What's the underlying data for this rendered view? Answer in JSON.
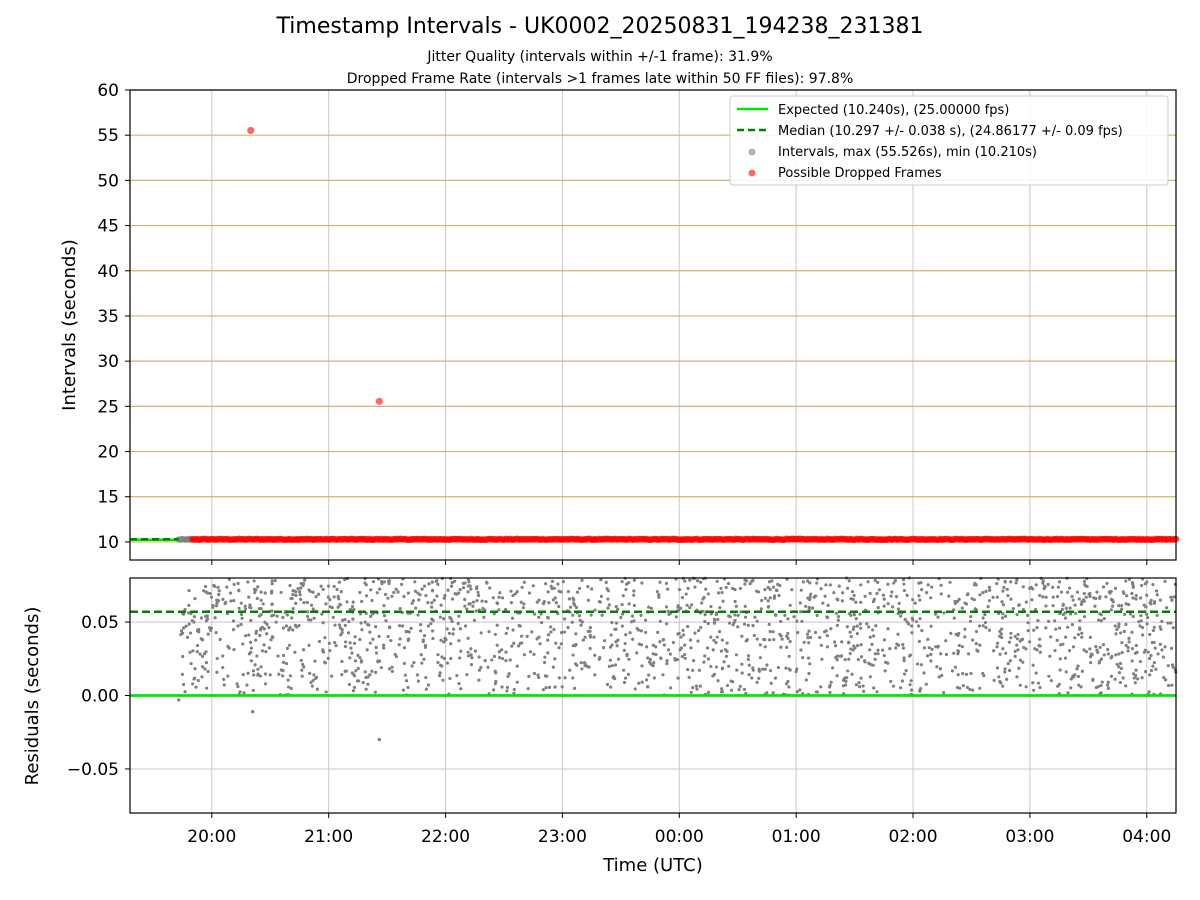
{
  "header": {
    "title": "Timestamp Intervals - UK0002_20250831_194238_231381",
    "subtitle_jitter": "Jitter Quality (intervals within +/-1 frame): 31.9%",
    "subtitle_dropped": "Dropped Frame Rate (intervals >1 frames late within 50 FF files): 97.8%"
  },
  "colors": {
    "expected": "#00e600",
    "median": "#008000",
    "intervals": "#808080",
    "dropped": "#ff0000",
    "hgrid_top": "#d2b46a",
    "grid": "#c8c8c8"
  },
  "chart_data": [
    {
      "type": "scatter",
      "title": "Timestamp Intervals - UK0002_20250831_194238_231381",
      "xlabel": "",
      "ylabel": "Intervals (seconds)",
      "ylim": [
        8,
        60
      ],
      "yticks": [
        10,
        15,
        20,
        25,
        30,
        35,
        40,
        45,
        50,
        55,
        60
      ],
      "xlim": [
        "19:18",
        "04:15"
      ],
      "x_tick_labels": [
        "20:00",
        "21:00",
        "22:00",
        "23:00",
        "00:00",
        "01:00",
        "02:00",
        "03:00",
        "04:00"
      ],
      "grid": "horizontal gridlines at every y tick; vertical gridlines at every hour",
      "legend_position": "top-right",
      "legend": [
        "Expected (10.240s), (25.00000 fps)",
        "Median (10.297 +/- 0.038 s), (24.86177 +/- 0.09 fps)",
        "Intervals, max (55.526s), min (10.210s)",
        "Possible Dropped Frames"
      ],
      "expected_line": {
        "y": 10.24,
        "style": "solid"
      },
      "median_line": {
        "y": 10.297,
        "style": "dashed"
      },
      "series": [
        {
          "name": "Intervals, max (55.526s), min (10.210s)",
          "description": "dense band between 10.21 and 10.32 s across the full night",
          "x_range": [
            "19:43",
            "04:15"
          ],
          "y_range": [
            10.21,
            10.32
          ]
        },
        {
          "name": "Possible Dropped Frames",
          "description": "continuous red band from about 19:50 to 04:15 plus two outliers",
          "band": {
            "x_range": [
              "19:50",
              "04:15"
            ],
            "y_range": [
              10.24,
              10.33
            ]
          },
          "outliers": [
            {
              "x": "20:20",
              "y": 55.526
            },
            {
              "x": "21:26",
              "y": 25.55
            }
          ]
        }
      ]
    },
    {
      "type": "scatter",
      "xlabel": "Time (UTC)",
      "ylabel": "Residuals (seconds)",
      "ylim": [
        -0.08,
        0.08
      ],
      "yticks": [
        -0.05,
        0.0,
        0.05
      ],
      "y_tick_labels": [
        "−0.05",
        "0.00",
        "0.05"
      ],
      "xlim": [
        "19:18",
        "04:15"
      ],
      "x_tick_labels": [
        "20:00",
        "21:00",
        "22:00",
        "23:00",
        "00:00",
        "01:00",
        "02:00",
        "03:00",
        "04:00"
      ],
      "grid": "on",
      "expected_line": {
        "y": 0.0,
        "style": "solid"
      },
      "median_line": {
        "y": 0.057,
        "style": "dashed"
      },
      "series": [
        {
          "name": "Residuals",
          "description": "residuals scattered mostly between 0.00 and 0.08 s",
          "y_range": [
            0.0,
            0.08
          ],
          "notable_points": [
            {
              "x": "19:43",
              "y": -0.003
            },
            {
              "x": "20:21",
              "y": -0.011
            },
            {
              "x": "21:26",
              "y": -0.03
            }
          ]
        }
      ]
    }
  ]
}
